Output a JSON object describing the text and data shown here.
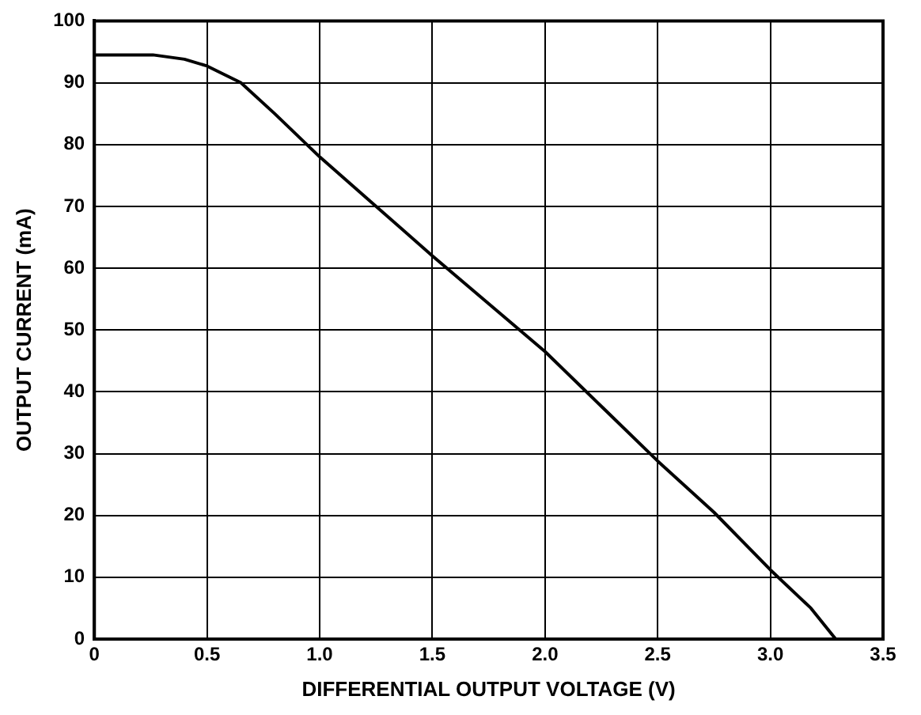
{
  "chart_data": {
    "type": "line",
    "xlabel": "DIFFERENTIAL OUTPUT VOLTAGE (V)",
    "ylabel": "OUTPUT CURRENT (mA)",
    "x": [
      0,
      0.26,
      0.4,
      0.5,
      0.65,
      0.8,
      1.0,
      1.5,
      2.0,
      2.5,
      2.75,
      3.0,
      3.18,
      3.29
    ],
    "series": [
      {
        "color": "#000000",
        "values": [
          94.5,
          94.5,
          93.8,
          92.7,
          90,
          85,
          78,
          62,
          46.5,
          28.8,
          20.5,
          11.2,
          5,
          0
        ]
      }
    ],
    "xlim": [
      0,
      3.5
    ],
    "xticks": [
      0,
      0.5,
      {
        "value": 1,
        "label": "1.0"
      },
      1.5,
      {
        "value": 2,
        "label": "2.0"
      },
      2.5,
      {
        "value": 3,
        "label": "3.0"
      },
      3.5
    ],
    "ylim": [
      0,
      100
    ],
    "yticks": [
      0,
      10,
      20,
      30,
      40,
      50,
      60,
      70,
      80,
      90,
      100
    ],
    "grid": true,
    "legend": false,
    "marker": "none",
    "line_style": "solid"
  }
}
